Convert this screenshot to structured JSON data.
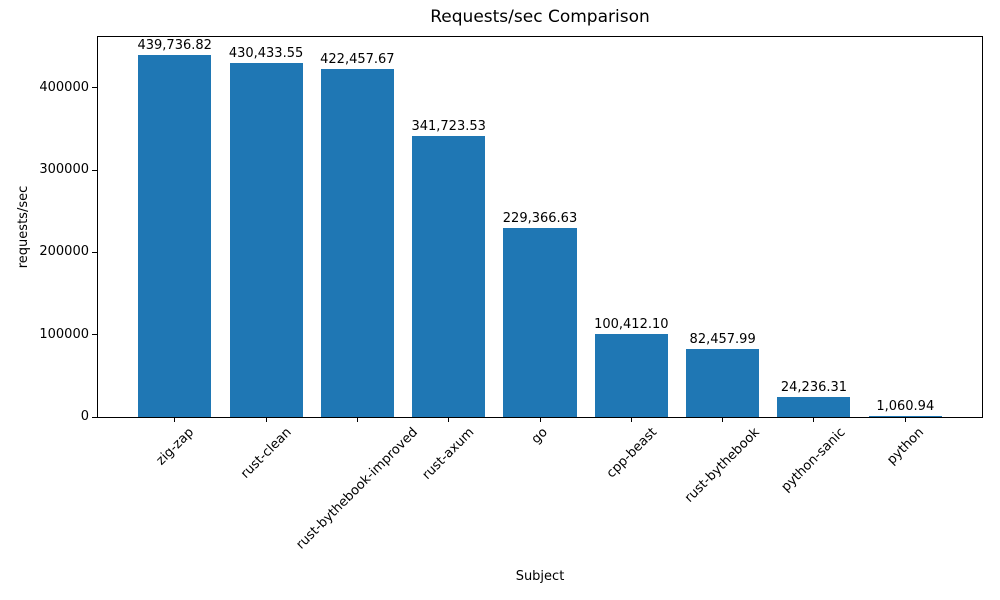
{
  "chart_data": {
    "type": "bar",
    "title": "Requests/sec Comparison",
    "xlabel": "Subject",
    "ylabel": "requests/sec",
    "categories": [
      "zig-zap",
      "rust-clean",
      "rust-bythebook-improved",
      "rust-axum",
      "go",
      "cpp-beast",
      "rust-bythebook",
      "python-sanic",
      "python"
    ],
    "values": [
      439736.82,
      430433.55,
      422457.67,
      341723.53,
      229366.63,
      100412.1,
      82457.99,
      24236.31,
      1060.94
    ],
    "value_labels": [
      "439,736.82",
      "430,433.55",
      "422,457.67",
      "341,723.53",
      "229,366.63",
      "100,412.10",
      "82,457.99",
      "24,236.31",
      "1,060.94"
    ],
    "yticks": [
      0,
      100000,
      200000,
      300000,
      400000
    ],
    "ytick_labels": [
      "0",
      "100000",
      "200000",
      "300000",
      "400000"
    ],
    "ylim": [
      0,
      461723.66
    ],
    "bar_color": "#1f77b4",
    "grid": false,
    "legend": null
  }
}
